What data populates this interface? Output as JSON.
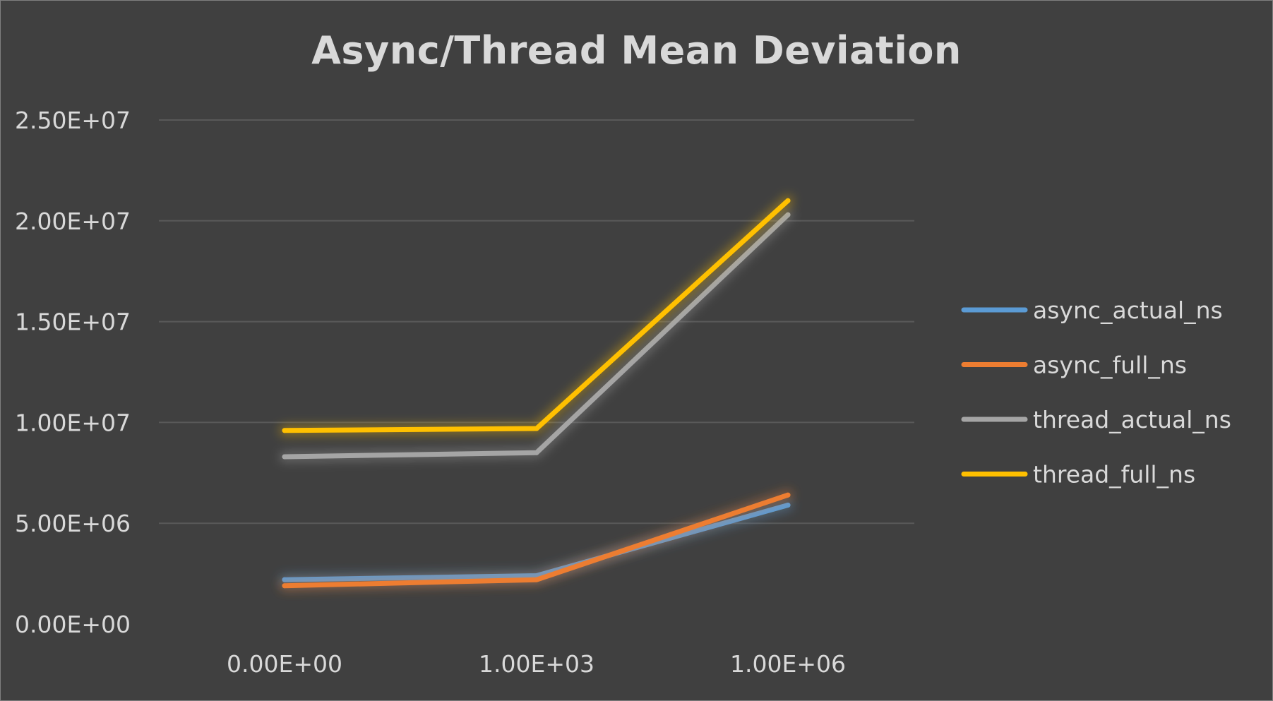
{
  "chart_data": {
    "type": "line",
    "title": "Async/Thread Mean Deviation",
    "xlabel": "",
    "ylabel": "",
    "categories": [
      "0.00E+00",
      "1.00E+03",
      "1.00E+06"
    ],
    "y_ticks": [
      "0.00E+00",
      "5.00E+06",
      "1.00E+07",
      "1.50E+07",
      "2.00E+07",
      "2.50E+07"
    ],
    "ylim": [
      0,
      25000000
    ],
    "grid": true,
    "legend_position": "right",
    "series": [
      {
        "name": "async_actual_ns",
        "color": "#5b9bd5",
        "values": [
          2200000,
          2400000,
          5900000
        ]
      },
      {
        "name": "async_full_ns",
        "color": "#ed7d31",
        "values": [
          1900000,
          2200000,
          6400000
        ]
      },
      {
        "name": "thread_actual_ns",
        "color": "#a5a5a5",
        "values": [
          8300000,
          8500000,
          20300000
        ]
      },
      {
        "name": "thread_full_ns",
        "color": "#ffc000",
        "values": [
          9600000,
          9700000,
          21000000
        ]
      }
    ]
  }
}
